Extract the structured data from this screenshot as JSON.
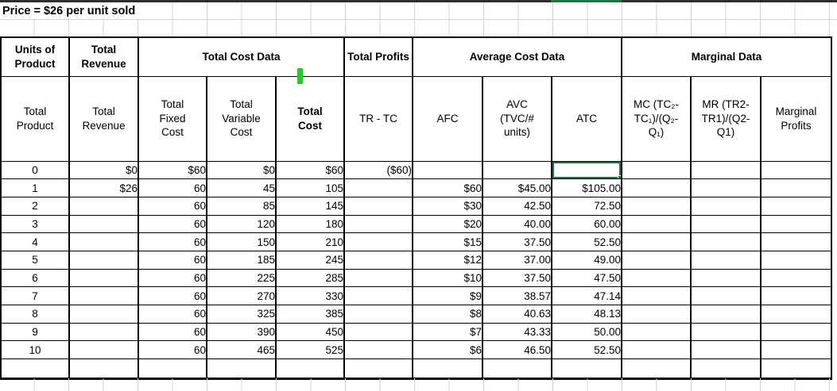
{
  "title": "Price = $26 per unit sold",
  "selection": {
    "row": 0,
    "column": "atc"
  },
  "colors": {
    "selection_green": "#217346",
    "marker_green": "#2dc52d",
    "top_strip": "#2e2e2e",
    "gridline": "#d4d4d4"
  },
  "table": {
    "groups": [
      {
        "label": "Units of Product",
        "span": 1
      },
      {
        "label": "Total Revenue",
        "span": 1
      },
      {
        "label": "Total Cost Data",
        "span": 3
      },
      {
        "label": "Total Profits",
        "span": 1
      },
      {
        "label": "Average Cost Data",
        "span": 3
      },
      {
        "label": "Marginal Data",
        "span": 3
      }
    ],
    "columns": [
      {
        "key": "total_product",
        "label": "Total Product",
        "bold": false
      },
      {
        "key": "total_revenue",
        "label": "Total Revenue",
        "bold": false
      },
      {
        "key": "total_fixed_cost",
        "label": "Total Fixed Cost",
        "bold": false
      },
      {
        "key": "total_variable_cost",
        "label": "Total Variable Cost",
        "bold": false
      },
      {
        "key": "total_cost",
        "label": "Total Cost",
        "bold": true
      },
      {
        "key": "profits",
        "label": "TR - TC",
        "bold": false
      },
      {
        "key": "afc",
        "label": "AFC",
        "bold": false
      },
      {
        "key": "avc",
        "label": "AVC (TVC/# units)",
        "bold": false
      },
      {
        "key": "atc",
        "label": "ATC",
        "bold": false
      },
      {
        "key": "mc",
        "label": "MC (TC₂-TC₁)/(Q₂-Q₁)",
        "bold": false
      },
      {
        "key": "mr",
        "label": "MR (TR2-TR1)/(Q2-Q1)",
        "bold": false
      },
      {
        "key": "marginal_profits",
        "label": "Marginal Profits",
        "bold": false
      }
    ],
    "rows": [
      [
        "0",
        "$0",
        "$60",
        "$0",
        "$60",
        "($60)",
        "",
        "",
        "",
        "",
        "",
        ""
      ],
      [
        "1",
        "$26",
        "60",
        "45",
        "105",
        "",
        "$60",
        "$45.00",
        "$105.00",
        "",
        "",
        ""
      ],
      [
        "2",
        "",
        "60",
        "85",
        "145",
        "",
        "$30",
        "42.50",
        "72.50",
        "",
        "",
        ""
      ],
      [
        "3",
        "",
        "60",
        "120",
        "180",
        "",
        "$20",
        "40.00",
        "60.00",
        "",
        "",
        ""
      ],
      [
        "4",
        "",
        "60",
        "150",
        "210",
        "",
        "$15",
        "37.50",
        "52.50",
        "",
        "",
        ""
      ],
      [
        "5",
        "",
        "60",
        "185",
        "245",
        "",
        "$12",
        "37.00",
        "49.00",
        "",
        "",
        ""
      ],
      [
        "6",
        "",
        "60",
        "225",
        "285",
        "",
        "$10",
        "37.50",
        "47.50",
        "",
        "",
        ""
      ],
      [
        "7",
        "",
        "60",
        "270",
        "330",
        "",
        "$9",
        "38.57",
        "47.14",
        "",
        "",
        ""
      ],
      [
        "8",
        "",
        "60",
        "325",
        "385",
        "",
        "$8",
        "40.63",
        "48.13",
        "",
        "",
        ""
      ],
      [
        "9",
        "",
        "60",
        "390",
        "450",
        "",
        "$7",
        "43.33",
        "50.00",
        "",
        "",
        ""
      ],
      [
        "10",
        "",
        "60",
        "465",
        "525",
        "",
        "$6",
        "46.50",
        "52.50",
        "",
        "",
        ""
      ],
      [
        "",
        "",
        "",
        "",
        "",
        "",
        "",
        "",
        "",
        "",
        "",
        ""
      ]
    ]
  }
}
